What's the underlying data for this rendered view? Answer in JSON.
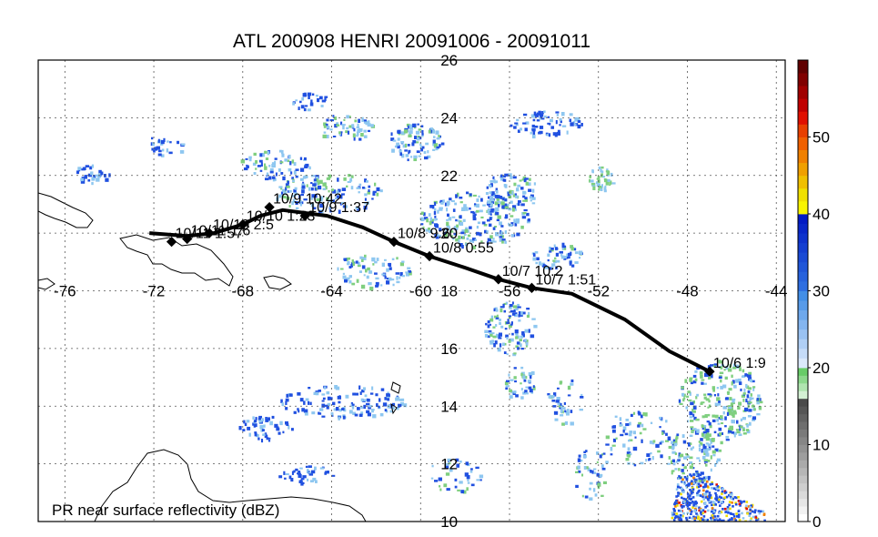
{
  "title": "ATL 200908 HENRI 20091006 - 20091011",
  "footer_label": "PR near surface reflectivity (dBZ)",
  "axes": {
    "lon_ticks": [
      "-76",
      "-72",
      "-68",
      "-64",
      "-60",
      "-56",
      "-52",
      "-48",
      "-44"
    ],
    "lat_ticks": [
      "26",
      "24",
      "22",
      "20",
      "18",
      "16",
      "14",
      "12",
      "10"
    ],
    "lon_range": [
      -77.2,
      -43.6
    ],
    "lat_range": [
      10,
      26
    ]
  },
  "colorbar": {
    "ticks": [
      "50",
      "40",
      "30",
      "20",
      "10",
      "0"
    ],
    "range": [
      0,
      60
    ],
    "colors": {
      "gray": "#9a9a9a",
      "green": "#7fcf7f",
      "light_blue": "#8ec7f0",
      "blue": "#2050e0",
      "yellow": "#f0e000",
      "orange": "#f08000",
      "red": "#e01000",
      "dark_red": "#700000"
    }
  },
  "track": {
    "color": "#000000",
    "points": [
      {
        "lon": -47.0,
        "lat": 15.2
      },
      {
        "lon": -48.8,
        "lat": 15.9
      },
      {
        "lon": -50.8,
        "lat": 17.0
      },
      {
        "lon": -53.2,
        "lat": 17.9
      },
      {
        "lon": -55.0,
        "lat": 18.1
      },
      {
        "lon": -56.5,
        "lat": 18.4
      },
      {
        "lon": -58.0,
        "lat": 18.8
      },
      {
        "lon": -59.6,
        "lat": 19.2
      },
      {
        "lon": -61.2,
        "lat": 19.7
      },
      {
        "lon": -62.6,
        "lat": 20.2
      },
      {
        "lon": -64.2,
        "lat": 20.6
      },
      {
        "lon": -66.2,
        "lat": 20.8
      },
      {
        "lon": -67.2,
        "lat": 20.6
      },
      {
        "lon": -68.0,
        "lat": 20.3
      },
      {
        "lon": -69.3,
        "lat": 20.0
      },
      {
        "lon": -70.5,
        "lat": 19.9
      },
      {
        "lon": -72.2,
        "lat": 20.0
      }
    ],
    "fixes": [
      {
        "label": "10/6 1:9",
        "lon": -47.0,
        "lat": 15.2
      },
      {
        "label": "10/7 1:51",
        "lon": -55.0,
        "lat": 18.1
      },
      {
        "label": "10/7 10:2",
        "lon": -56.5,
        "lat": 18.4
      },
      {
        "label": "10/8 0:55",
        "lon": -59.6,
        "lat": 19.2
      },
      {
        "label": "10/8 9:6",
        "lon": -61.2,
        "lat": 19.7
      },
      {
        "label": "10/9 1:37",
        "lon": -65.2,
        "lat": 20.6
      },
      {
        "label": "10/9 10:42",
        "lon": -66.8,
        "lat": 20.9
      },
      {
        "label": "10/10 1:23",
        "lon": -68.0,
        "lat": 20.3
      },
      {
        "label": "10/10 2:5",
        "lon": -69.5,
        "lat": 20.0
      },
      {
        "label": "10/11 1:6",
        "lon": -70.5,
        "lat": 19.8
      },
      {
        "label": "10/11 1:57",
        "lon": -71.2,
        "lat": 19.7
      }
    ]
  }
}
